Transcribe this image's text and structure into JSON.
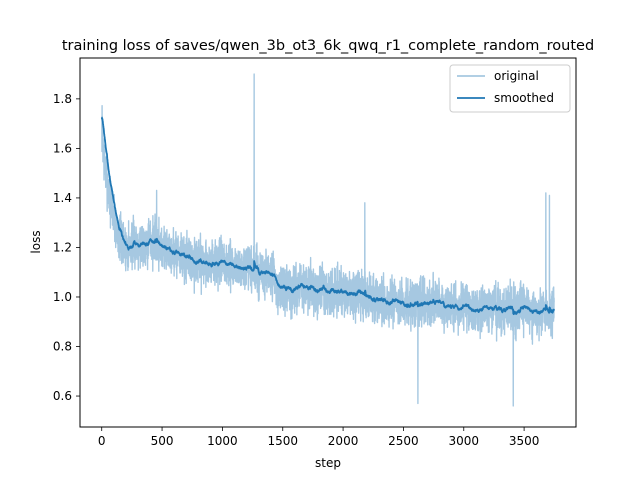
{
  "chart_data": {
    "type": "line",
    "title": "training loss of saves/qwen_3b_ot3_6k_qwq_r1_complete_random_routed",
    "xlabel": "step",
    "ylabel": "loss",
    "xlim": [
      -180,
      3930
    ],
    "ylim": [
      0.475,
      1.965
    ],
    "x_ticks": [
      0,
      500,
      1000,
      1500,
      2000,
      2500,
      3000,
      3500
    ],
    "x_tick_labels": [
      "0",
      "500",
      "1000",
      "1500",
      "2000",
      "2500",
      "3000",
      "3500"
    ],
    "y_ticks": [
      0.6,
      0.8,
      1.0,
      1.2,
      1.4,
      1.6,
      1.8
    ],
    "y_tick_labels": [
      "0.6",
      "0.8",
      "1.0",
      "1.2",
      "1.4",
      "1.6",
      "1.8"
    ],
    "grid": false,
    "legend_position": "upper right",
    "series": [
      {
        "name": "original",
        "color": "#a6c8e1",
        "n_points": 3750,
        "seed": 7,
        "trend": [
          [
            0,
            1.7
          ],
          [
            20,
            1.55
          ],
          [
            60,
            1.42
          ],
          [
            120,
            1.28
          ],
          [
            180,
            1.2
          ],
          [
            300,
            1.22
          ],
          [
            400,
            1.23
          ],
          [
            600,
            1.18
          ],
          [
            800,
            1.14
          ],
          [
            1000,
            1.13
          ],
          [
            1200,
            1.11
          ],
          [
            1400,
            1.08
          ],
          [
            1500,
            1.02
          ],
          [
            1700,
            1.04
          ],
          [
            1900,
            1.02
          ],
          [
            2100,
            1.01
          ],
          [
            2300,
            0.99
          ],
          [
            2500,
            0.97
          ],
          [
            2700,
            0.98
          ],
          [
            2900,
            0.96
          ],
          [
            3100,
            0.95
          ],
          [
            3300,
            0.95
          ],
          [
            3500,
            0.94
          ],
          [
            3749,
            0.94
          ]
        ],
        "noise": 0.09,
        "spikes": [
          [
            1263,
            1.9
          ],
          [
            455,
            1.43
          ],
          [
            2180,
            1.38
          ],
          [
            3680,
            1.42
          ],
          [
            3710,
            1.41
          ],
          [
            2620,
            0.57
          ],
          [
            3410,
            0.56
          ]
        ]
      },
      {
        "name": "smoothed",
        "color": "#1f77b4",
        "smoothing_of": "original",
        "alpha": 0.96
      }
    ]
  }
}
